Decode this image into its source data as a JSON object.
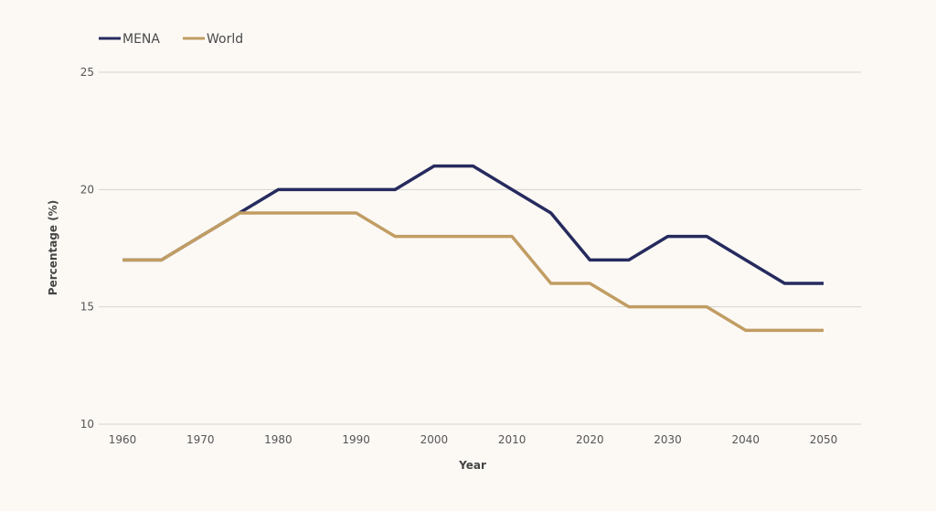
{
  "chart_data": {
    "type": "line",
    "title": "",
    "xlabel": "Year",
    "ylabel": "Percentage (%)",
    "x": [
      1960,
      1965,
      1970,
      1975,
      1980,
      1985,
      1990,
      1995,
      2000,
      2005,
      2010,
      2015,
      2020,
      2025,
      2030,
      2035,
      2040,
      2045,
      2050
    ],
    "x_ticks": [
      "1960",
      "1970",
      "1980",
      "1990",
      "2000",
      "2010",
      "2020",
      "2030",
      "2040",
      "2050"
    ],
    "y_ticks": [
      "10",
      "15",
      "20",
      "25"
    ],
    "ylim": [
      10,
      25
    ],
    "xlim": [
      1960,
      2050
    ],
    "grid": "horizontal",
    "legend_position": "top-left",
    "series": [
      {
        "name": "MENA",
        "color": "#262b5e",
        "values": [
          17,
          17,
          18,
          19,
          20,
          20,
          20,
          20,
          21,
          21,
          20,
          19,
          17,
          17,
          18,
          18,
          17,
          16,
          16
        ]
      },
      {
        "name": "World",
        "color": "#c19d63",
        "values": [
          17,
          17,
          18,
          19,
          19,
          19,
          19,
          18,
          18,
          18,
          18,
          16,
          16,
          15,
          15,
          15,
          14,
          14,
          14
        ]
      }
    ]
  }
}
